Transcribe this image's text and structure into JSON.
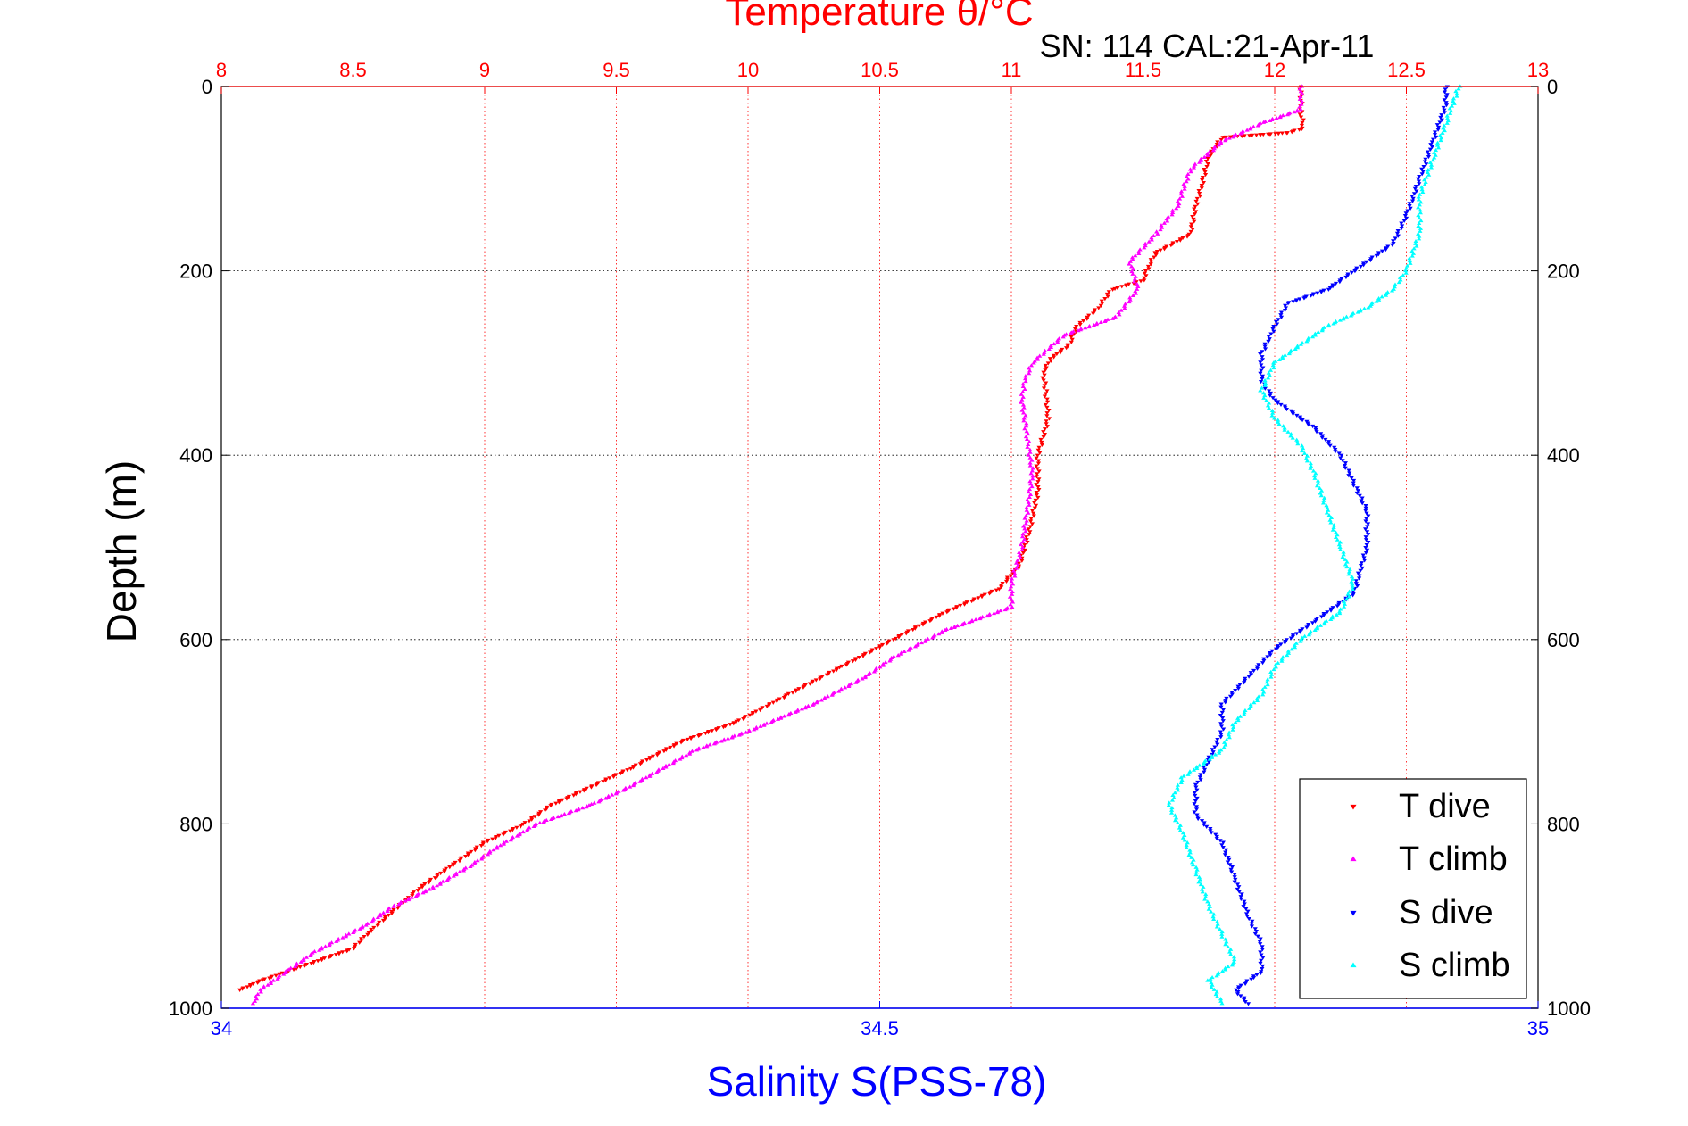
{
  "chart_data": {
    "type": "scatter",
    "title": "Temperature θ/°C",
    "subtitle": "SN: 114  CAL:21-Apr-11",
    "x_top_label": "Temperature θ/°C",
    "x_bottom_label": "Salinity S(PSS-78)",
    "ylabel": "Depth (m)",
    "ylim": [
      0,
      1000
    ],
    "y_reversed": true,
    "x_top_lim": [
      8,
      13
    ],
    "x_bottom_lim": [
      34,
      35
    ],
    "y_ticks": [
      "0",
      "200",
      "400",
      "600",
      "800",
      "1000"
    ],
    "x_top_ticks": [
      "8",
      "8.5",
      "9",
      "9.5",
      "10",
      "10.5",
      "11",
      "11.5",
      "12",
      "12.5",
      "13"
    ],
    "x_bottom_ticks": [
      "34",
      "34.5",
      "35"
    ],
    "grid": true,
    "legend_position": "bottom-right",
    "colors": {
      "temperature_axis": "#ff0000",
      "salinity_axis": "#0000ff",
      "T_dive": "#ff0000",
      "T_climb": "#ff00ff",
      "S_dive": "#0000ff",
      "S_climb": "#00ffff"
    },
    "series": [
      {
        "name": "T dive",
        "axis": "temperature",
        "marker": "triangle-down",
        "color": "#ff0000",
        "points": [
          [
            12.1,
            0
          ],
          [
            12.1,
            30
          ],
          [
            12.11,
            45
          ],
          [
            12.05,
            50
          ],
          [
            11.8,
            55
          ],
          [
            11.75,
            75
          ],
          [
            11.72,
            110
          ],
          [
            11.7,
            130
          ],
          [
            11.68,
            160
          ],
          [
            11.55,
            180
          ],
          [
            11.52,
            195
          ],
          [
            11.5,
            210
          ],
          [
            11.38,
            220
          ],
          [
            11.33,
            240
          ],
          [
            11.25,
            260
          ],
          [
            11.22,
            280
          ],
          [
            11.15,
            295
          ],
          [
            11.12,
            310
          ],
          [
            11.13,
            330
          ],
          [
            11.14,
            360
          ],
          [
            11.1,
            400
          ],
          [
            11.1,
            440
          ],
          [
            11.07,
            480
          ],
          [
            11.03,
            520
          ],
          [
            10.95,
            545
          ],
          [
            10.75,
            570
          ],
          [
            10.55,
            600
          ],
          [
            10.35,
            630
          ],
          [
            10.15,
            660
          ],
          [
            9.95,
            690
          ],
          [
            9.75,
            710
          ],
          [
            9.55,
            740
          ],
          [
            9.4,
            760
          ],
          [
            9.25,
            780
          ],
          [
            9.15,
            800
          ],
          [
            9.0,
            820
          ],
          [
            8.85,
            850
          ],
          [
            8.75,
            870
          ],
          [
            8.55,
            920
          ],
          [
            8.5,
            935
          ],
          [
            8.3,
            955
          ],
          [
            8.15,
            970
          ],
          [
            8.07,
            980
          ]
        ]
      },
      {
        "name": "T climb",
        "axis": "temperature",
        "marker": "triangle-up",
        "color": "#ff00ff",
        "points": [
          [
            12.1,
            0
          ],
          [
            12.1,
            25
          ],
          [
            11.95,
            40
          ],
          [
            11.8,
            60
          ],
          [
            11.68,
            90
          ],
          [
            11.63,
            130
          ],
          [
            11.55,
            160
          ],
          [
            11.45,
            190
          ],
          [
            11.48,
            220
          ],
          [
            11.4,
            250
          ],
          [
            11.3,
            260
          ],
          [
            11.2,
            270
          ],
          [
            11.08,
            300
          ],
          [
            11.05,
            320
          ],
          [
            11.04,
            340
          ],
          [
            11.06,
            380
          ],
          [
            11.08,
            420
          ],
          [
            11.06,
            460
          ],
          [
            11.04,
            500
          ],
          [
            11.0,
            540
          ],
          [
            11.0,
            565
          ],
          [
            10.75,
            590
          ],
          [
            10.55,
            620
          ],
          [
            10.45,
            640
          ],
          [
            10.25,
            670
          ],
          [
            10.0,
            700
          ],
          [
            9.8,
            720
          ],
          [
            9.55,
            760
          ],
          [
            9.4,
            780
          ],
          [
            9.2,
            800
          ],
          [
            9.05,
            825
          ],
          [
            8.95,
            845
          ],
          [
            8.8,
            870
          ],
          [
            8.65,
            890
          ],
          [
            8.55,
            910
          ],
          [
            8.35,
            940
          ],
          [
            8.25,
            960
          ],
          [
            8.15,
            980
          ],
          [
            8.12,
            995
          ]
        ]
      },
      {
        "name": "S dive",
        "axis": "salinity",
        "marker": "triangle-down",
        "color": "#0000ff",
        "points": [
          [
            34.93,
            0
          ],
          [
            34.93,
            20
          ],
          [
            34.92,
            60
          ],
          [
            34.91,
            100
          ],
          [
            34.9,
            140
          ],
          [
            34.89,
            170
          ],
          [
            34.86,
            200
          ],
          [
            34.84,
            220
          ],
          [
            34.81,
            235
          ],
          [
            34.8,
            260
          ],
          [
            34.79,
            290
          ],
          [
            34.79,
            320
          ],
          [
            34.8,
            340
          ],
          [
            34.83,
            370
          ],
          [
            34.85,
            400
          ],
          [
            34.86,
            430
          ],
          [
            34.87,
            460
          ],
          [
            34.87,
            500
          ],
          [
            34.86,
            550
          ],
          [
            34.83,
            580
          ],
          [
            34.8,
            610
          ],
          [
            34.78,
            640
          ],
          [
            34.76,
            670
          ],
          [
            34.76,
            700
          ],
          [
            34.75,
            730
          ],
          [
            34.74,
            760
          ],
          [
            34.74,
            790
          ],
          [
            34.76,
            820
          ],
          [
            34.77,
            860
          ],
          [
            34.78,
            900
          ],
          [
            34.79,
            930
          ],
          [
            34.79,
            960
          ],
          [
            34.77,
            980
          ],
          [
            34.78,
            995
          ]
        ]
      },
      {
        "name": "S climb",
        "axis": "salinity",
        "marker": "triangle-up",
        "color": "#00ffff",
        "points": [
          [
            34.94,
            0
          ],
          [
            34.93,
            40
          ],
          [
            34.92,
            80
          ],
          [
            34.91,
            120
          ],
          [
            34.91,
            160
          ],
          [
            34.9,
            200
          ],
          [
            34.89,
            220
          ],
          [
            34.87,
            240
          ],
          [
            34.84,
            260
          ],
          [
            34.82,
            280
          ],
          [
            34.8,
            300
          ],
          [
            34.79,
            330
          ],
          [
            34.8,
            360
          ],
          [
            34.82,
            390
          ],
          [
            34.83,
            420
          ],
          [
            34.84,
            460
          ],
          [
            34.85,
            500
          ],
          [
            34.86,
            540
          ],
          [
            34.85,
            570
          ],
          [
            34.82,
            600
          ],
          [
            34.8,
            630
          ],
          [
            34.79,
            660
          ],
          [
            34.77,
            690
          ],
          [
            34.76,
            720
          ],
          [
            34.73,
            750
          ],
          [
            34.72,
            780
          ],
          [
            34.73,
            810
          ],
          [
            34.74,
            850
          ],
          [
            34.75,
            890
          ],
          [
            34.76,
            920
          ],
          [
            34.77,
            950
          ],
          [
            34.75,
            970
          ],
          [
            34.76,
            995
          ]
        ]
      }
    ]
  }
}
